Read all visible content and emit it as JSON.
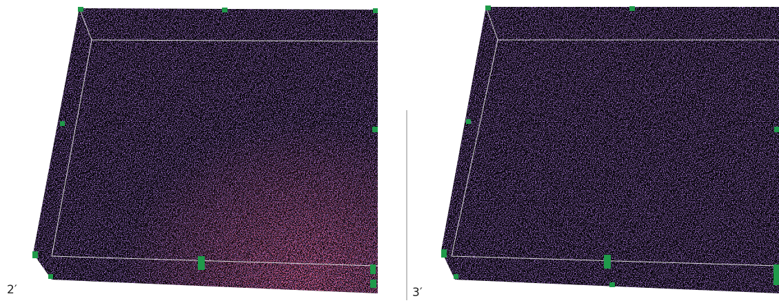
{
  "panels": [
    {
      "label": "2′"
    },
    {
      "label": "3′"
    }
  ]
}
